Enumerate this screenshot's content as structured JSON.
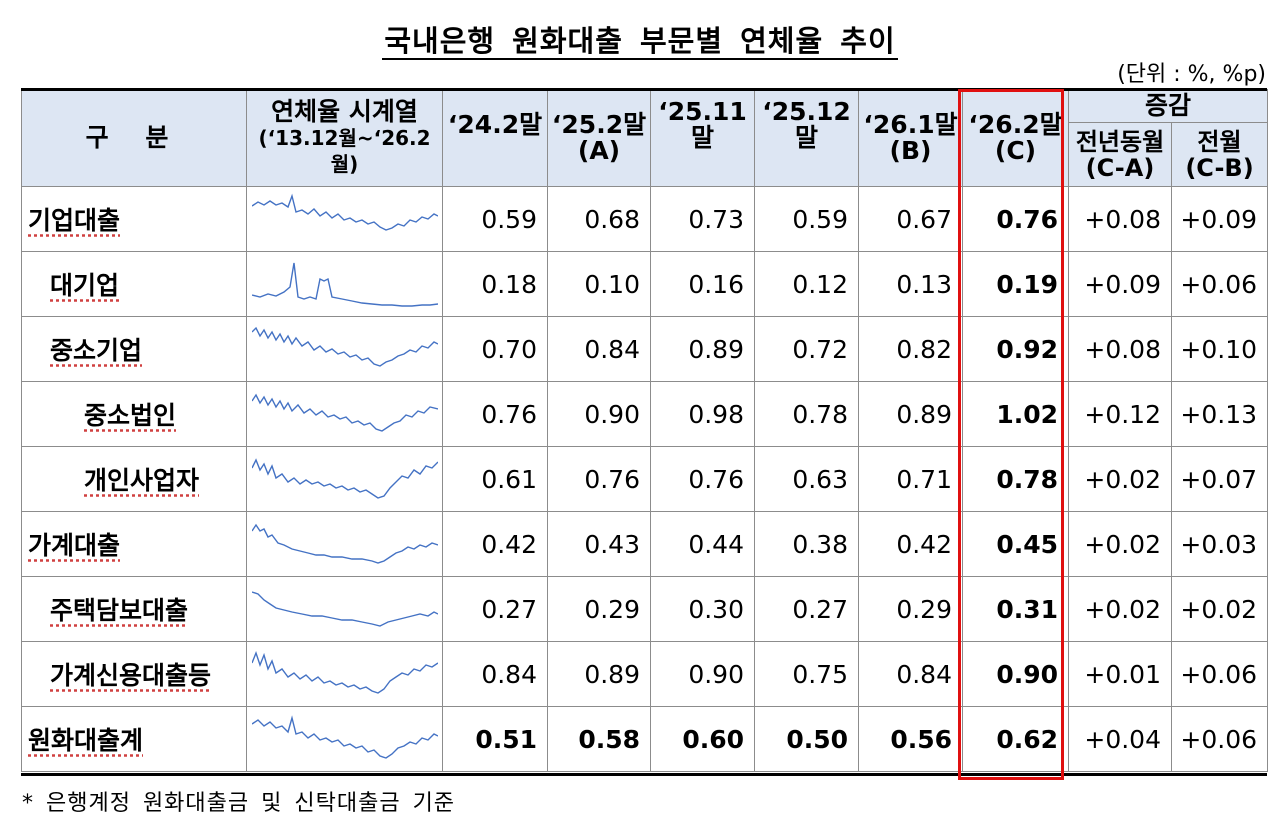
{
  "title": "국내은행 원화대출 부문별 연체율 추이",
  "unit": "(단위 : %, %p)",
  "header": {
    "category": "구  분",
    "series_label": "연체율 시계열",
    "series_range": "(‘13.12월~‘26.2월)",
    "cols": [
      "‘24.2말",
      "‘25.2말",
      "‘25.11말",
      "‘25.12말",
      "‘26.1말",
      "‘26.2말"
    ],
    "col_sub": [
      "",
      "(A)",
      "",
      "",
      "(B)",
      "(C)"
    ],
    "change": "증감",
    "change_yoy": "전년동월",
    "change_yoy_sub": "(C-A)",
    "change_mom": "전월",
    "change_mom_sub": "(C-B)"
  },
  "rows": [
    {
      "label": "기업대출",
      "v": [
        "0.59",
        "0.68",
        "0.73",
        "0.59",
        "0.67",
        "0.76"
      ],
      "yoy": "+0.08",
      "mom": "+0.09"
    },
    {
      "label": "대기업",
      "v": [
        "0.18",
        "0.10",
        "0.16",
        "0.12",
        "0.13",
        "0.19"
      ],
      "yoy": "+0.09",
      "mom": "+0.06"
    },
    {
      "label": "중소기업",
      "v": [
        "0.70",
        "0.84",
        "0.89",
        "0.72",
        "0.82",
        "0.92"
      ],
      "yoy": "+0.08",
      "mom": "+0.10"
    },
    {
      "label": "중소법인",
      "v": [
        "0.76",
        "0.90",
        "0.98",
        "0.78",
        "0.89",
        "1.02"
      ],
      "yoy": "+0.12",
      "mom": "+0.13"
    },
    {
      "label": "개인사업자",
      "v": [
        "0.61",
        "0.76",
        "0.76",
        "0.63",
        "0.71",
        "0.78"
      ],
      "yoy": "+0.02",
      "mom": "+0.07"
    },
    {
      "label": "가계대출",
      "v": [
        "0.42",
        "0.43",
        "0.44",
        "0.38",
        "0.42",
        "0.45"
      ],
      "yoy": "+0.02",
      "mom": "+0.03"
    },
    {
      "label": "주택담보대출",
      "v": [
        "0.27",
        "0.29",
        "0.30",
        "0.27",
        "0.29",
        "0.31"
      ],
      "yoy": "+0.02",
      "mom": "+0.02"
    },
    {
      "label": "가계신용대출등",
      "v": [
        "0.84",
        "0.89",
        "0.90",
        "0.75",
        "0.84",
        "0.90"
      ],
      "yoy": "+0.01",
      "mom": "+0.06"
    },
    {
      "label": "원화대출계",
      "v": [
        "0.51",
        "0.58",
        "0.60",
        "0.50",
        "0.56",
        "0.62"
      ],
      "yoy": "+0.04",
      "mom": "+0.06"
    }
  ],
  "footnote": "* 은행계정 원화대출금 및 신탁대출금 기준",
  "colors": {
    "header_bg": "#dde6f3",
    "highlight": "#e01010",
    "sparkline": "#4472c4"
  }
}
